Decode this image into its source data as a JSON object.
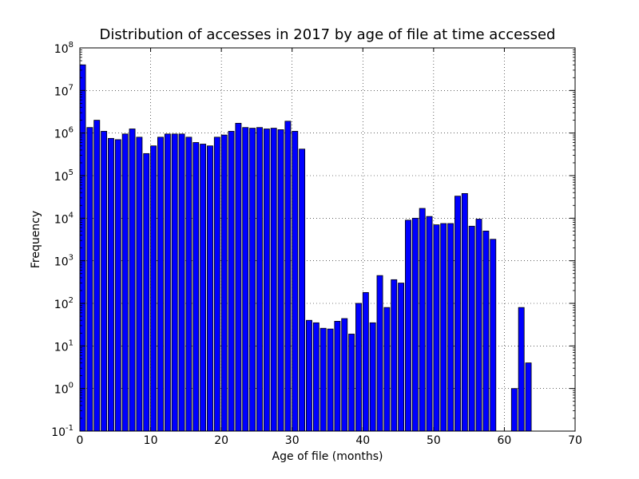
{
  "chart_data": {
    "type": "bar",
    "title": "Distribution of accesses in 2017 by age of file at time accessed",
    "xlabel": "Age of file (months)",
    "ylabel": "Frequency",
    "xlim": [
      0,
      70
    ],
    "ylim": [
      0.1,
      100000000
    ],
    "yscale": "log",
    "grid": true,
    "bar_color": "#0000ff",
    "edge_color": "#000000",
    "x_ticks": [
      0,
      10,
      20,
      30,
      40,
      50,
      60,
      70
    ],
    "y_ticks": [
      {
        "value": 0.1,
        "base": "10",
        "exp": "-1"
      },
      {
        "value": 1,
        "base": "10",
        "exp": "0"
      },
      {
        "value": 10,
        "base": "10",
        "exp": "1"
      },
      {
        "value": 100,
        "base": "10",
        "exp": "2"
      },
      {
        "value": 1000,
        "base": "10",
        "exp": "3"
      },
      {
        "value": 10000,
        "base": "10",
        "exp": "4"
      },
      {
        "value": 100000,
        "base": "10",
        "exp": "5"
      },
      {
        "value": 1000000,
        "base": "10",
        "exp": "6"
      },
      {
        "value": 10000000,
        "base": "10",
        "exp": "7"
      },
      {
        "value": 100000000,
        "base": "10",
        "exp": "8"
      }
    ],
    "x": [
      0,
      1,
      2,
      3,
      4,
      5,
      6,
      7,
      8,
      9,
      10,
      11,
      12,
      13,
      14,
      15,
      16,
      17,
      18,
      19,
      20,
      21,
      22,
      23,
      24,
      25,
      26,
      27,
      28,
      29,
      30,
      31,
      32,
      33,
      34,
      35,
      36,
      37,
      38,
      39,
      40,
      41,
      42,
      43,
      44,
      45,
      46,
      47,
      48,
      49,
      50,
      51,
      52,
      53,
      54,
      55,
      56,
      57,
      58,
      59,
      60,
      61,
      62,
      63
    ],
    "values": [
      40000000,
      1350000,
      2000000,
      1100000,
      750000,
      700000,
      950000,
      1250000,
      800000,
      330000,
      500000,
      800000,
      950000,
      950000,
      950000,
      800000,
      600000,
      550000,
      500000,
      800000,
      900000,
      1100000,
      1700000,
      1350000,
      1300000,
      1350000,
      1250000,
      1300000,
      1200000,
      1900000,
      1100000,
      420000,
      40,
      35,
      26,
      25,
      38,
      44,
      19,
      100,
      180,
      35,
      450,
      80,
      360,
      300,
      9000,
      10000,
      17000,
      11000,
      7000,
      7500,
      7500,
      33000,
      38000,
      6500,
      9500,
      5000,
      3200,
      null,
      null,
      1,
      80,
      4
    ]
  }
}
